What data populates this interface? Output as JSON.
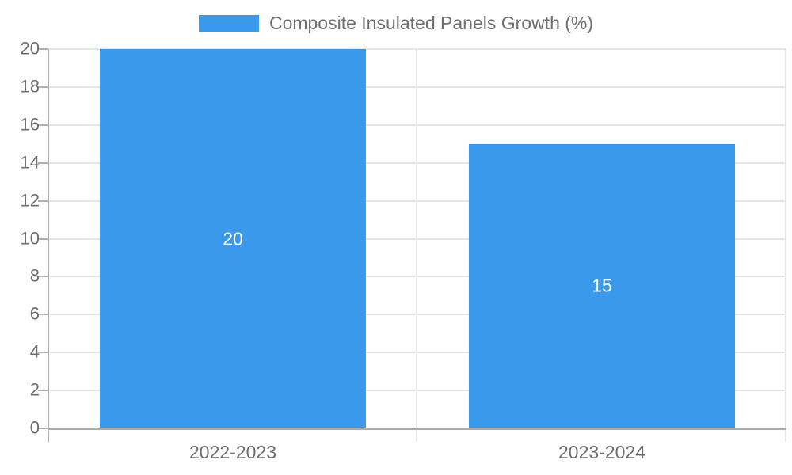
{
  "colors": {
    "bar": "#3b99ec",
    "grid": "#e6e6e6",
    "axis": "#ababab",
    "tick": "#b0b0b0",
    "text": "#6e6e6e",
    "data_label": "#ffffff",
    "background": "#ffffff"
  },
  "legend": {
    "label": "Composite Insulated Panels Growth (%)"
  },
  "chart_data": {
    "type": "bar",
    "title": "",
    "categories": [
      "2022-2023",
      "2023-2024"
    ],
    "series": [
      {
        "name": "Composite Insulated Panels Growth (%)",
        "values": [
          20,
          15
        ]
      }
    ],
    "data_labels": [
      "20",
      "15"
    ],
    "xlabel": "",
    "ylabel": "",
    "ylim": [
      0,
      20
    ],
    "yticks": [
      0,
      2,
      4,
      6,
      8,
      10,
      12,
      14,
      16,
      18,
      20
    ],
    "grid": true,
    "legend_position": "top"
  }
}
